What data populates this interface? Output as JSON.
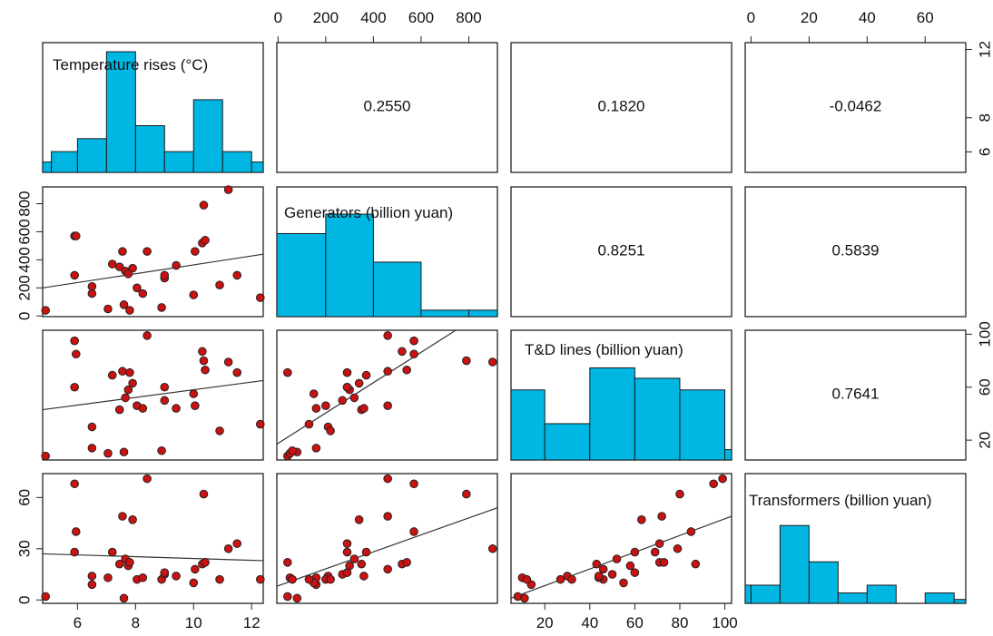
{
  "chart_data": {
    "type": "scatter",
    "layout": "pairs-matrix",
    "variables": [
      "Temperature rises (°C)",
      "Generators (billion yuan)",
      "T&D lines (billion yuan)",
      "Transformers (billion yuan)"
    ],
    "ticks": [
      [
        6,
        8,
        10,
        12
      ],
      [
        0,
        200,
        400,
        600,
        800
      ],
      [
        20,
        40,
        60,
        80,
        100
      ],
      [
        0,
        30,
        60
      ]
    ],
    "top_ticks": [
      [
        0,
        200,
        400,
        600,
        800
      ],
      [
        0,
        20,
        40,
        60
      ]
    ],
    "right_ticks": [
      [
        6,
        8,
        12
      ],
      [
        20,
        60,
        100
      ]
    ],
    "ranges": [
      [
        4.8,
        12.4
      ],
      [
        -5,
        920
      ],
      [
        5,
        103
      ],
      [
        -2,
        74
      ]
    ],
    "correlations": [
      {
        "row": 0,
        "col": 1,
        "text": "0.2550"
      },
      {
        "row": 0,
        "col": 2,
        "text": "0.1820"
      },
      {
        "row": 0,
        "col": 3,
        "text": "-0.0462"
      },
      {
        "row": 1,
        "col": 2,
        "text": "0.8251"
      },
      {
        "row": 1,
        "col": 3,
        "text": "0.5839"
      },
      {
        "row": 2,
        "col": 3,
        "text": "0.7641"
      }
    ],
    "histograms": [
      {
        "edges": [
          4.8,
          5.1,
          6,
          7,
          8,
          9,
          10,
          11,
          12,
          12.4
        ],
        "heights": [
          0.08,
          0.16,
          0.26,
          0.93,
          0.36,
          0.16,
          0.56,
          0.16,
          0.08
        ]
      },
      {
        "edges": [
          -5,
          200,
          400,
          600,
          800,
          920
        ],
        "heights": [
          0.64,
          0.79,
          0.42,
          0.05,
          0.05
        ]
      },
      {
        "edges": [
          5,
          20,
          40,
          60,
          80,
          100,
          103
        ],
        "heights": [
          0.54,
          0.28,
          0.71,
          0.63,
          0.54,
          0.08
        ]
      },
      {
        "edges": [
          -2,
          0,
          10,
          20,
          30,
          40,
          50,
          60,
          70,
          74
        ],
        "heights": [
          0.14,
          0.14,
          0.6,
          0.32,
          0.08,
          0.14,
          0,
          0.08,
          0.03
        ]
      }
    ],
    "observations": [
      {
        "temperature": 4.9,
        "generators": 40,
        "td_lines": 8,
        "transformers": 2
      },
      {
        "temperature": 5.9,
        "generators": 570,
        "td_lines": 95,
        "transformers": 68
      },
      {
        "temperature": 5.95,
        "generators": 570,
        "td_lines": 85,
        "transformers": 40
      },
      {
        "temperature": 5.9,
        "generators": 290,
        "td_lines": 60,
        "transformers": 28
      },
      {
        "temperature": 6.5,
        "generators": 210,
        "td_lines": 30,
        "transformers": 14
      },
      {
        "temperature": 6.5,
        "generators": 160,
        "td_lines": 14,
        "transformers": 9
      },
      {
        "temperature": 7.05,
        "generators": 50,
        "td_lines": 10,
        "transformers": 13
      },
      {
        "temperature": 7.2,
        "generators": 370,
        "td_lines": 69,
        "transformers": 28
      },
      {
        "temperature": 7.45,
        "generators": 350,
        "td_lines": 43,
        "transformers": 21
      },
      {
        "temperature": 7.55,
        "generators": 460,
        "td_lines": 72,
        "transformers": 49
      },
      {
        "temperature": 7.6,
        "generators": 80,
        "td_lines": 11,
        "transformers": 1
      },
      {
        "temperature": 7.65,
        "generators": 320,
        "td_lines": 52,
        "transformers": 24
      },
      {
        "temperature": 7.75,
        "generators": 300,
        "td_lines": 58,
        "transformers": 20
      },
      {
        "temperature": 7.8,
        "generators": 40,
        "td_lines": 71,
        "transformers": 22
      },
      {
        "temperature": 7.9,
        "generators": 340,
        "td_lines": 63,
        "transformers": 47
      },
      {
        "temperature": 8.05,
        "generators": 200,
        "td_lines": 46,
        "transformers": 12
      },
      {
        "temperature": 8.25,
        "generators": 160,
        "td_lines": 44,
        "transformers": 13
      },
      {
        "temperature": 8.4,
        "generators": 460,
        "td_lines": 99,
        "transformers": 71
      },
      {
        "temperature": 8.9,
        "generators": 60,
        "td_lines": 12,
        "transformers": 12
      },
      {
        "temperature": 9.0,
        "generators": 270,
        "td_lines": 50,
        "transformers": 15
      },
      {
        "temperature": 9.0,
        "generators": 290,
        "td_lines": 60,
        "transformers": 16
      },
      {
        "temperature": 9.4,
        "generators": 360,
        "td_lines": 44,
        "transformers": 14
      },
      {
        "temperature": 10.0,
        "generators": 150,
        "td_lines": 55,
        "transformers": 10
      },
      {
        "temperature": 10.05,
        "generators": 460,
        "td_lines": 46,
        "transformers": 18
      },
      {
        "temperature": 10.3,
        "generators": 520,
        "td_lines": 87,
        "transformers": 21
      },
      {
        "temperature": 10.35,
        "generators": 790,
        "td_lines": 80,
        "transformers": 62
      },
      {
        "temperature": 10.4,
        "generators": 540,
        "td_lines": 73,
        "transformers": 22
      },
      {
        "temperature": 10.9,
        "generators": 220,
        "td_lines": 27,
        "transformers": 12
      },
      {
        "temperature": 11.2,
        "generators": 900,
        "td_lines": 79,
        "transformers": 30
      },
      {
        "temperature": 11.5,
        "generators": 290,
        "td_lines": 71,
        "transformers": 33
      },
      {
        "temperature": 12.3,
        "generators": 130,
        "td_lines": 32,
        "transformers": 12
      }
    ],
    "fit_lines": [
      {
        "row": 1,
        "col": 0,
        "y_at_xmin": 200,
        "y_at_xmax": 440
      },
      {
        "row": 2,
        "col": 0,
        "y_at_xmin": 43,
        "y_at_xmax": 65
      },
      {
        "row": 3,
        "col": 0,
        "y_at_xmin": 27,
        "y_at_xmax": 23
      },
      {
        "row": 2,
        "col": 1,
        "y_at_xmin": 17,
        "y_at_xmax": 123
      },
      {
        "row": 3,
        "col": 1,
        "y_at_xmin": 8,
        "y_at_xmax": 54
      },
      {
        "row": 3,
        "col": 2,
        "y_at_xmin": 1,
        "y_at_xmax": 49
      }
    ],
    "colors": {
      "point_fill": "#cc1111",
      "point_stroke": "#222222",
      "histogram_fill": "#00b7e4",
      "histogram_stroke": "#1a1a1a",
      "panel_border": "#222222",
      "fit_line": "#333333"
    },
    "grid": false,
    "legend": "none"
  }
}
